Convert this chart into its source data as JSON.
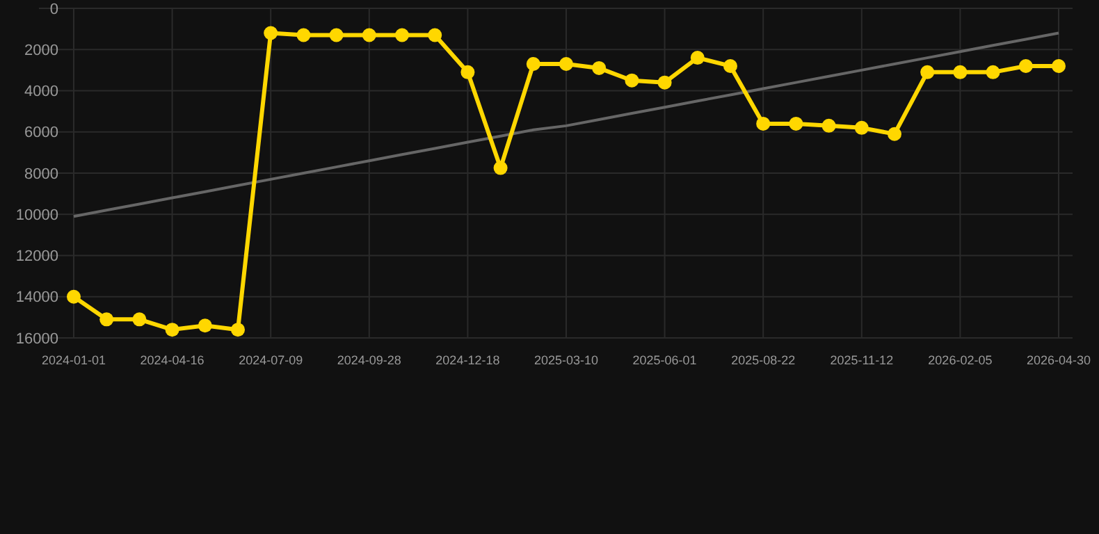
{
  "chart_data": {
    "type": "line",
    "categories": [
      "2024-01-01",
      null,
      null,
      "2024-04-16",
      null,
      null,
      "2024-07-09",
      null,
      null,
      "2024-09-28",
      null,
      null,
      "2024-12-18",
      null,
      null,
      "2025-03-10",
      null,
      null,
      "2025-06-01",
      null,
      null,
      "2025-08-22",
      null,
      null,
      "2025-11-12",
      null,
      null,
      "2026-02-05",
      null,
      null,
      "2026-04-30"
    ],
    "series": [
      {
        "color": "#ffd700",
        "values": [
          14000,
          15100,
          15100,
          15600,
          15400,
          15600,
          1200,
          1300,
          1300,
          1300,
          1300,
          1300,
          3100,
          7750,
          2700,
          2700,
          2900,
          3500,
          3600,
          2400,
          2800,
          5600,
          5600,
          5700,
          5800,
          6100,
          3100,
          3100,
          3100,
          2800,
          2800
        ]
      },
      {
        "type": "line",
        "color": "#666666",
        "values": [
          10100,
          9800,
          9500,
          9200,
          8900,
          8600,
          8300,
          8000,
          7700,
          7400,
          7100,
          6800,
          6500,
          6200,
          5900,
          5700,
          5400,
          5100,
          4800,
          4500,
          4200,
          3900,
          3600,
          3300,
          3000,
          2700,
          2400,
          2100,
          1800,
          1500,
          1200
        ],
        "marker": "none"
      }
    ],
    "ylim": [
      16000,
      0
    ],
    "yticks": [
      0,
      2000,
      4000,
      6000,
      8000,
      10000,
      12000,
      14000,
      16000
    ],
    "grid": true,
    "marker": "circle"
  }
}
